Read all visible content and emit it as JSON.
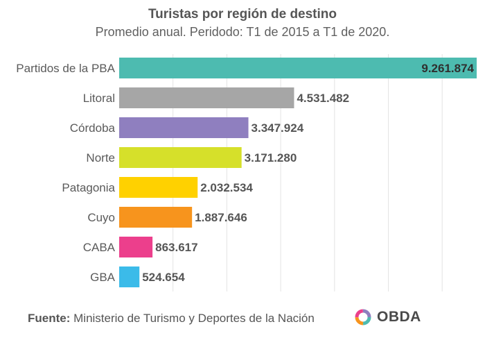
{
  "chart_data": {
    "type": "bar",
    "orientation": "horizontal",
    "title": "Turistas por región de destino",
    "subtitle": "Promedio anual. Peridodo: T1 de 2015 a T1 de 2020.",
    "categories": [
      "Partidos de la PBA",
      "Litoral",
      "Córdoba",
      "Norte",
      "Patagonia",
      "Cuyo",
      "CABA",
      "GBA"
    ],
    "values": [
      9261874,
      4531482,
      3347924,
      3171280,
      2032534,
      1887646,
      863617,
      524654
    ],
    "value_labels": [
      "9.261.874",
      "4.531.482",
      "3.347.924",
      "3.171.280",
      "2.032.534",
      "1.887.646",
      "863.617",
      "524.654"
    ],
    "colors": [
      "#4dbbb0",
      "#a6a6a6",
      "#8f7fbf",
      "#d6e02a",
      "#ffd100",
      "#f7941d",
      "#ec3f8c",
      "#3bbbe9"
    ],
    "xlim": [
      0,
      9261874
    ],
    "grid": true,
    "xlabel": "",
    "ylabel": ""
  },
  "footer": {
    "source_label": "Fuente:",
    "source_text": "Ministerio de Turismo y Deportes de la Nación"
  },
  "logo": {
    "text": "OBDA"
  }
}
